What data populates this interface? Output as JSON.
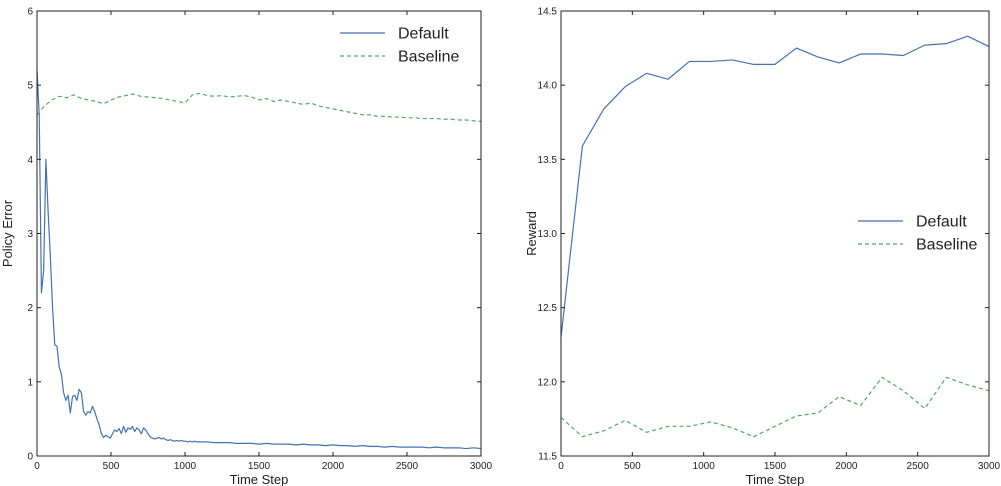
{
  "colors": {
    "default": "#4472b4",
    "baseline": "#55a868",
    "axis": "#222222"
  },
  "chart_data": [
    {
      "type": "line",
      "xlabel": "Time Step",
      "ylabel": "Policy Error",
      "xlim": [
        0,
        3000
      ],
      "ylim": [
        0,
        6
      ],
      "xticks": [
        "0",
        "500",
        "1000",
        "1500",
        "2000",
        "2500",
        "3000"
      ],
      "yticks": [
        "0",
        "1",
        "2",
        "3",
        "4",
        "5",
        "6"
      ],
      "legend_position": "top-right",
      "grid": false,
      "series": [
        {
          "name": "Default",
          "style": "solid",
          "x": [
            0,
            15,
            30,
            45,
            60,
            75,
            90,
            105,
            120,
            135,
            150,
            165,
            180,
            195,
            210,
            225,
            240,
            255,
            270,
            285,
            300,
            315,
            330,
            345,
            360,
            375,
            390,
            405,
            420,
            435,
            450,
            465,
            480,
            495,
            510,
            525,
            540,
            555,
            570,
            585,
            600,
            615,
            630,
            645,
            660,
            675,
            690,
            705,
            720,
            735,
            750,
            765,
            780,
            795,
            810,
            825,
            840,
            855,
            870,
            885,
            900,
            915,
            930,
            945,
            960,
            975,
            990,
            1005,
            1020,
            1035,
            1050,
            1065,
            1080,
            1100,
            1150,
            1200,
            1250,
            1300,
            1350,
            1400,
            1450,
            1500,
            1550,
            1600,
            1650,
            1700,
            1750,
            1800,
            1850,
            1900,
            1950,
            2000,
            2050,
            2100,
            2150,
            2200,
            2250,
            2300,
            2350,
            2400,
            2450,
            2500,
            2550,
            2600,
            2650,
            2700,
            2750,
            2800,
            2850,
            2900,
            2950,
            3000
          ],
          "y": [
            5.2,
            4.6,
            2.2,
            2.5,
            4.0,
            3.3,
            2.7,
            2.0,
            1.5,
            1.48,
            1.2,
            1.1,
            0.85,
            0.75,
            0.82,
            0.58,
            0.8,
            0.82,
            0.75,
            0.9,
            0.85,
            0.6,
            0.55,
            0.6,
            0.58,
            0.67,
            0.6,
            0.5,
            0.42,
            0.3,
            0.25,
            0.28,
            0.26,
            0.24,
            0.3,
            0.35,
            0.33,
            0.37,
            0.3,
            0.4,
            0.32,
            0.38,
            0.36,
            0.4,
            0.33,
            0.38,
            0.35,
            0.3,
            0.38,
            0.35,
            0.3,
            0.26,
            0.24,
            0.23,
            0.24,
            0.25,
            0.23,
            0.24,
            0.22,
            0.21,
            0.22,
            0.21,
            0.2,
            0.21,
            0.2,
            0.21,
            0.2,
            0.2,
            0.19,
            0.2,
            0.19,
            0.2,
            0.19,
            0.19,
            0.19,
            0.18,
            0.18,
            0.18,
            0.17,
            0.17,
            0.17,
            0.16,
            0.17,
            0.16,
            0.16,
            0.16,
            0.15,
            0.16,
            0.15,
            0.15,
            0.14,
            0.15,
            0.14,
            0.14,
            0.13,
            0.14,
            0.13,
            0.13,
            0.12,
            0.13,
            0.12,
            0.12,
            0.12,
            0.12,
            0.11,
            0.12,
            0.11,
            0.11,
            0.11,
            0.1,
            0.11,
            0.1
          ]
        },
        {
          "name": "Baseline",
          "style": "dashed",
          "x": [
            0,
            50,
            100,
            150,
            200,
            250,
            300,
            350,
            400,
            450,
            500,
            550,
            600,
            650,
            700,
            750,
            800,
            850,
            900,
            950,
            1000,
            1050,
            1100,
            1150,
            1200,
            1250,
            1300,
            1350,
            1400,
            1450,
            1500,
            1550,
            1600,
            1650,
            1700,
            1750,
            1800,
            1850,
            1900,
            1950,
            2000,
            2050,
            2100,
            2150,
            2200,
            2250,
            2300,
            2350,
            2400,
            2450,
            2500,
            2550,
            2600,
            2650,
            2700,
            2750,
            2800,
            2850,
            2900,
            2950,
            3000
          ],
          "y": [
            4.6,
            4.72,
            4.8,
            4.85,
            4.83,
            4.87,
            4.82,
            4.8,
            4.78,
            4.75,
            4.8,
            4.84,
            4.86,
            4.88,
            4.85,
            4.84,
            4.83,
            4.82,
            4.8,
            4.78,
            4.76,
            4.87,
            4.89,
            4.86,
            4.85,
            4.86,
            4.84,
            4.85,
            4.86,
            4.84,
            4.8,
            4.82,
            4.78,
            4.8,
            4.78,
            4.76,
            4.74,
            4.76,
            4.72,
            4.7,
            4.68,
            4.66,
            4.64,
            4.62,
            4.6,
            4.6,
            4.58,
            4.58,
            4.57,
            4.57,
            4.56,
            4.56,
            4.55,
            4.55,
            4.55,
            4.54,
            4.54,
            4.53,
            4.53,
            4.52,
            4.51
          ]
        }
      ]
    },
    {
      "type": "line",
      "xlabel": "Time Step",
      "ylabel": "Reward",
      "xlim": [
        0,
        3000
      ],
      "ylim": [
        11.5,
        14.5
      ],
      "xticks": [
        "0",
        "500",
        "1000",
        "1500",
        "2000",
        "2500",
        "3000"
      ],
      "yticks": [
        "11.5",
        "12.0",
        "12.5",
        "13.0",
        "13.5",
        "14.0",
        "14.5"
      ],
      "legend_position": "center-right",
      "grid": false,
      "series": [
        {
          "name": "Default",
          "style": "solid",
          "x": [
            0,
            150,
            300,
            450,
            600,
            750,
            900,
            1050,
            1200,
            1350,
            1500,
            1650,
            1800,
            1950,
            2100,
            2250,
            2400,
            2550,
            2700,
            2850,
            3000
          ],
          "y": [
            12.3,
            13.59,
            13.84,
            13.99,
            14.08,
            14.04,
            14.16,
            14.16,
            14.17,
            14.14,
            14.14,
            14.25,
            14.19,
            14.15,
            14.21,
            14.21,
            14.2,
            14.27,
            14.28,
            14.33,
            14.26
          ]
        },
        {
          "name": "Baseline",
          "style": "dashed",
          "x": [
            0,
            150,
            300,
            450,
            600,
            750,
            900,
            1050,
            1200,
            1350,
            1500,
            1650,
            1800,
            1950,
            2100,
            2250,
            2400,
            2550,
            2700,
            2850,
            3000
          ],
          "y": [
            11.76,
            11.63,
            11.67,
            11.74,
            11.66,
            11.7,
            11.7,
            11.73,
            11.69,
            11.63,
            11.7,
            11.77,
            11.79,
            11.9,
            11.84,
            12.03,
            11.94,
            11.82,
            12.03,
            11.98,
            11.94
          ]
        }
      ]
    }
  ]
}
